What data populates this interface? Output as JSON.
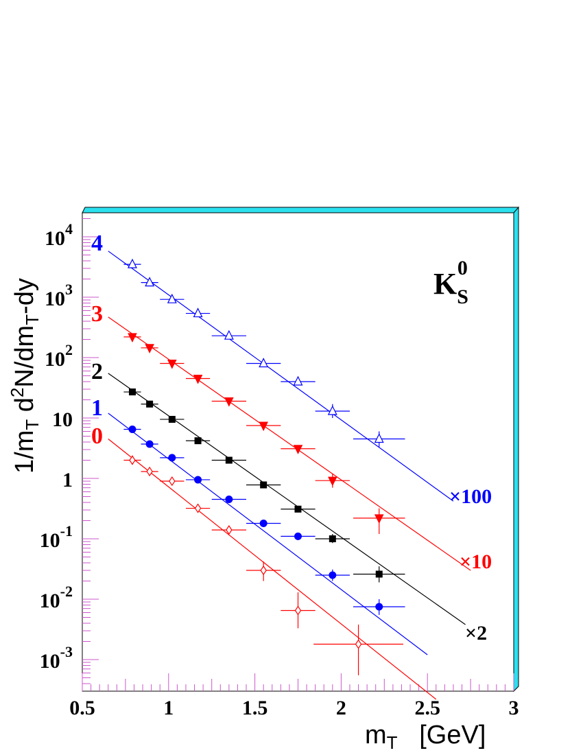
{
  "chart_data": {
    "type": "scatter",
    "title": "",
    "particle": {
      "main": "K",
      "sub": "S",
      "sup": "0"
    },
    "ylabel": {
      "t1": "1/m",
      "s1": "T",
      "t2": " d",
      "p1": "2",
      "t3": "N/dm",
      "s2": "T",
      "t4": "-dy"
    },
    "xlabel": {
      "t1": "m",
      "s1": "T",
      "t2": "   [GeV]"
    },
    "xlim": [
      0.5,
      3.0
    ],
    "ylim": [
      0.0002,
      20000
    ],
    "yscale": "log",
    "xticks": [
      0.5,
      1.0,
      1.5,
      2.0,
      2.5,
      3.0
    ],
    "xtick_labels": [
      "0.5",
      "1",
      "1.5",
      "2",
      "2.5",
      "3"
    ],
    "ytick_labels": [
      {
        "v": 10000,
        "base": "10",
        "exp": "4"
      },
      {
        "v": 1000,
        "base": "10",
        "exp": "3"
      },
      {
        "v": 100,
        "base": "10",
        "exp": "2"
      },
      {
        "v": 10,
        "base": "10",
        "exp": ""
      },
      {
        "v": 1,
        "base": "1",
        "exp": ""
      },
      {
        "v": 0.1,
        "base": "10",
        "exp": "-1"
      },
      {
        "v": 0.01,
        "base": "10",
        "exp": "-2"
      },
      {
        "v": 0.001,
        "base": "10",
        "exp": "-3"
      }
    ],
    "series": [
      {
        "label": "4",
        "scale_label": "×100",
        "color": "#0000ff",
        "marker": "open-triangle-up",
        "fit": {
          "x0": 0.65,
          "y0": 5800,
          "x1": 2.65,
          "y1": 0.42
        },
        "points": [
          {
            "x": 0.79,
            "y": 3500,
            "xerr": 0.05,
            "ylo": 3300,
            "yhi": 3700
          },
          {
            "x": 0.89,
            "y": 1750,
            "xerr": 0.05,
            "ylo": 1650,
            "yhi": 1850
          },
          {
            "x": 1.02,
            "y": 920,
            "xerr": 0.07,
            "ylo": 860,
            "yhi": 980
          },
          {
            "x": 1.17,
            "y": 540,
            "xerr": 0.07,
            "ylo": 500,
            "yhi": 580
          },
          {
            "x": 1.35,
            "y": 230,
            "xerr": 0.1,
            "ylo": 215,
            "yhi": 245
          },
          {
            "x": 1.55,
            "y": 80,
            "xerr": 0.1,
            "ylo": 74,
            "yhi": 86
          },
          {
            "x": 1.75,
            "y": 40,
            "xerr": 0.1,
            "ylo": 36,
            "yhi": 44
          },
          {
            "x": 1.95,
            "y": 13,
            "xerr": 0.1,
            "ylo": 10,
            "yhi": 17
          },
          {
            "x": 2.22,
            "y": 4.5,
            "xerr": 0.15,
            "ylo": 3.3,
            "yhi": 6.0
          }
        ]
      },
      {
        "label": "3",
        "scale_label": "×10",
        "color": "#ff0000",
        "marker": "filled-triangle-down",
        "fit": {
          "x0": 0.65,
          "y0": 470,
          "x1": 2.75,
          "y1": 0.03
        },
        "points": [
          {
            "x": 0.79,
            "y": 220,
            "xerr": 0.05,
            "ylo": 205,
            "yhi": 235
          },
          {
            "x": 0.89,
            "y": 145,
            "xerr": 0.05,
            "ylo": 136,
            "yhi": 154
          },
          {
            "x": 1.02,
            "y": 80,
            "xerr": 0.07,
            "ylo": 75,
            "yhi": 85
          },
          {
            "x": 1.17,
            "y": 45,
            "xerr": 0.07,
            "ylo": 42,
            "yhi": 48
          },
          {
            "x": 1.35,
            "y": 19,
            "xerr": 0.1,
            "ylo": 17.5,
            "yhi": 20.5
          },
          {
            "x": 1.55,
            "y": 7.5,
            "xerr": 0.1,
            "ylo": 7.0,
            "yhi": 8.0
          },
          {
            "x": 1.75,
            "y": 3.1,
            "xerr": 0.1,
            "ylo": 2.8,
            "yhi": 3.4
          },
          {
            "x": 1.95,
            "y": 0.92,
            "xerr": 0.1,
            "ylo": 0.7,
            "yhi": 1.2
          },
          {
            "x": 2.22,
            "y": 0.22,
            "xerr": 0.15,
            "ylo": 0.12,
            "yhi": 0.32
          }
        ]
      },
      {
        "label": "2",
        "scale_label": "×2",
        "color": "#000000",
        "marker": "filled-square",
        "fit": {
          "x0": 0.65,
          "y0": 55,
          "x1": 2.72,
          "y1": 0.0038
        },
        "points": [
          {
            "x": 0.79,
            "y": 27,
            "xerr": 0.05,
            "ylo": 25.5,
            "yhi": 28.5
          },
          {
            "x": 0.89,
            "y": 17,
            "xerr": 0.05,
            "ylo": 16,
            "yhi": 18
          },
          {
            "x": 1.02,
            "y": 9.5,
            "xerr": 0.07,
            "ylo": 9.0,
            "yhi": 10
          },
          {
            "x": 1.17,
            "y": 4.2,
            "xerr": 0.07,
            "ylo": 3.9,
            "yhi": 4.5
          },
          {
            "x": 1.35,
            "y": 2.0,
            "xerr": 0.1,
            "ylo": 1.85,
            "yhi": 2.15
          },
          {
            "x": 1.55,
            "y": 0.78,
            "xerr": 0.1,
            "ylo": 0.72,
            "yhi": 0.84
          },
          {
            "x": 1.75,
            "y": 0.31,
            "xerr": 0.1,
            "ylo": 0.28,
            "yhi": 0.34
          },
          {
            "x": 1.95,
            "y": 0.1,
            "xerr": 0.1,
            "ylo": 0.085,
            "yhi": 0.12
          },
          {
            "x": 2.22,
            "y": 0.026,
            "xerr": 0.15,
            "ylo": 0.019,
            "yhi": 0.035
          }
        ]
      },
      {
        "label": "1",
        "scale_label": "",
        "color": "#0000ff",
        "marker": "filled-circle",
        "fit": {
          "x0": 0.65,
          "y0": 12,
          "x1": 2.5,
          "y1": 0.0012
        },
        "points": [
          {
            "x": 0.79,
            "y": 6.5,
            "xerr": 0.05,
            "ylo": 6.1,
            "yhi": 6.9
          },
          {
            "x": 0.89,
            "y": 3.7,
            "xerr": 0.05,
            "ylo": 3.5,
            "yhi": 3.9
          },
          {
            "x": 1.02,
            "y": 2.2,
            "xerr": 0.07,
            "ylo": 2.05,
            "yhi": 2.35
          },
          {
            "x": 1.17,
            "y": 0.95,
            "xerr": 0.07,
            "ylo": 0.88,
            "yhi": 1.02
          },
          {
            "x": 1.35,
            "y": 0.45,
            "xerr": 0.1,
            "ylo": 0.42,
            "yhi": 0.48
          },
          {
            "x": 1.55,
            "y": 0.18,
            "xerr": 0.1,
            "ylo": 0.165,
            "yhi": 0.195
          },
          {
            "x": 1.75,
            "y": 0.11,
            "xerr": 0.1,
            "ylo": 0.095,
            "yhi": 0.125
          },
          {
            "x": 1.95,
            "y": 0.025,
            "xerr": 0.1,
            "ylo": 0.02,
            "yhi": 0.031
          },
          {
            "x": 2.22,
            "y": 0.0075,
            "xerr": 0.15,
            "ylo": 0.0055,
            "yhi": 0.01
          }
        ]
      },
      {
        "label": "0",
        "scale_label": "",
        "color": "#ff0000",
        "marker": "open-diamond",
        "fit": {
          "x0": 0.65,
          "y0": 4.5,
          "x1": 2.55,
          "y1": 0.00022
        },
        "points": [
          {
            "x": 0.79,
            "y": 2.0,
            "xerr": 0.05,
            "ylo": 1.7,
            "yhi": 2.4
          },
          {
            "x": 0.89,
            "y": 1.3,
            "xerr": 0.05,
            "ylo": 1.1,
            "yhi": 1.5
          },
          {
            "x": 1.02,
            "y": 0.9,
            "xerr": 0.07,
            "ylo": 0.8,
            "yhi": 1.0
          },
          {
            "x": 1.17,
            "y": 0.32,
            "xerr": 0.07,
            "ylo": 0.28,
            "yhi": 0.36
          },
          {
            "x": 1.35,
            "y": 0.14,
            "xerr": 0.1,
            "ylo": 0.12,
            "yhi": 0.16
          },
          {
            "x": 1.55,
            "y": 0.03,
            "xerr": 0.1,
            "ylo": 0.02,
            "yhi": 0.042
          },
          {
            "x": 1.75,
            "y": 0.0065,
            "xerr": 0.1,
            "ylo": 0.0033,
            "yhi": 0.013
          },
          {
            "x": 2.1,
            "y": 0.0018,
            "xerr": 0.26,
            "ylo": 0.00055,
            "yhi": 0.0038
          }
        ]
      }
    ],
    "frame": {
      "accent": "#2ce0ee",
      "axis_color": "#cc55cc"
    }
  }
}
